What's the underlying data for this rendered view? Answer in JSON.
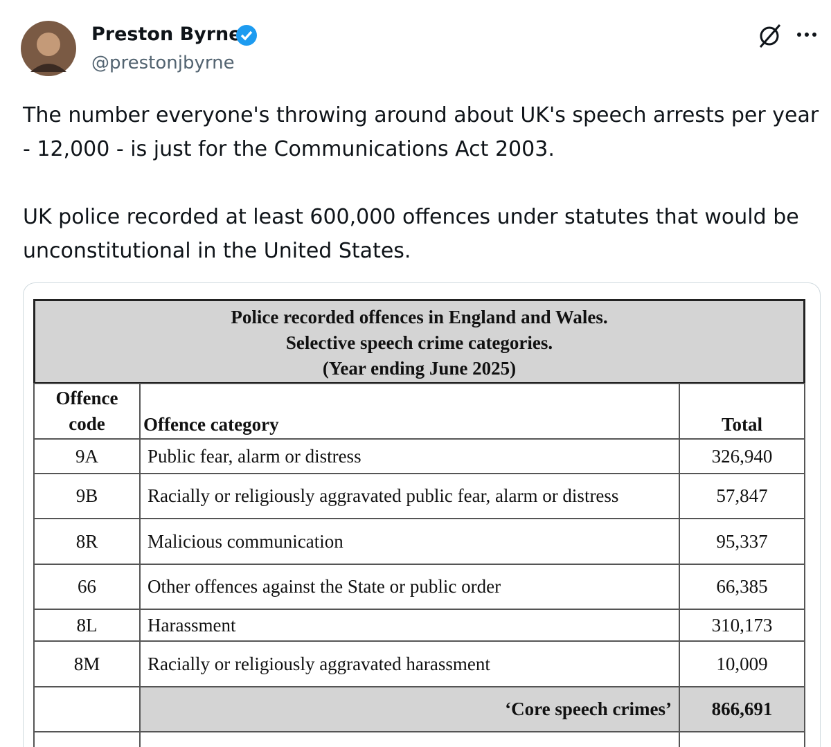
{
  "post": {
    "author": {
      "name": "Preston Byrne",
      "handle": "@prestonjbyrne"
    },
    "paragraphs": [
      "The number everyone's throwing around about UK's speech arrests per year - 12,000 - is just for the Communications Act 2003.",
      "UK police recorded at least 600,000 offences under statutes that would be unconstitutional in the United States."
    ]
  },
  "table": {
    "title": [
      "Police recorded offences in England and Wales.",
      "Selective speech crime categories.",
      "(Year ending June 2025)"
    ],
    "header": [
      "Offence code",
      "Offence category",
      "Total"
    ],
    "rows": [
      [
        "9A",
        "Public fear, alarm or distress",
        "326,940"
      ],
      [
        "9B",
        "Racially or religiously aggravated public fear, alarm or distress",
        "57,847"
      ],
      [
        "8R",
        "Malicious communication",
        "95,337"
      ],
      [
        "66",
        "Other offences against the State or public order",
        "66,385"
      ],
      [
        "8L",
        "Harassment",
        "310,173"
      ],
      [
        "8M",
        "Racially or religiously aggravated harassment",
        "10,009"
      ]
    ],
    "total": {
      "label": "‘Core speech crimes’",
      "value": "866,691"
    }
  }
}
